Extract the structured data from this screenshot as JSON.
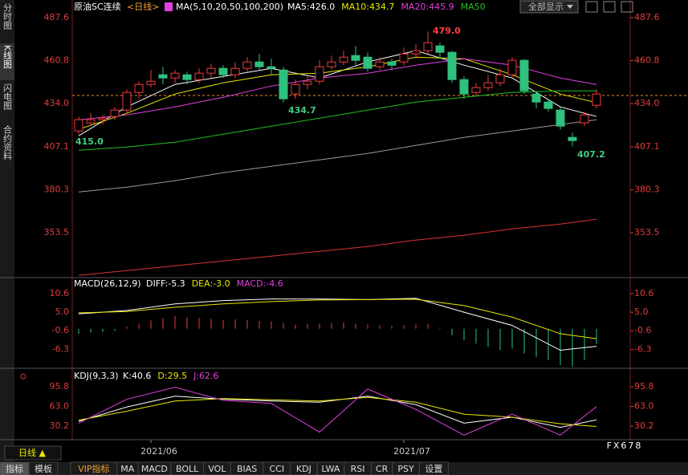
{
  "ui": {
    "sidebar": [
      "分时图",
      "K线图",
      "闪电图",
      "合约资料"
    ],
    "show_all": "全部显示",
    "period_button": "日线 ▲",
    "watermark": "FX678",
    "tabs": [
      "指标",
      "模板",
      "VIP指标",
      "MA",
      "MACD",
      "BOLL",
      "VOL",
      "BIAS",
      "CCI",
      "KDJ",
      "LWA",
      "RSI",
      "CR",
      "PSY",
      "设置"
    ]
  },
  "chart_data": [
    {
      "type": "candlestick",
      "title": "原油SC连续",
      "period": "<日线>",
      "ma_label": "MA(5,10,20,50,100,200)",
      "up_color": "#f03c3c",
      "down_color": "#2fc07e",
      "open": [
        417,
        422,
        424,
        426,
        430,
        441,
        446,
        452,
        450,
        452,
        449,
        453,
        456,
        452,
        456,
        460,
        457,
        455,
        440,
        446,
        448,
        457,
        460,
        464,
        463,
        457,
        460,
        460,
        465,
        467,
        470,
        466,
        449,
        441,
        444,
        447,
        452,
        461,
        440,
        435,
        430,
        413,
        422,
        433
      ],
      "high": [
        426,
        428,
        427,
        432,
        443,
        448,
        455,
        457,
        455,
        454,
        456,
        459,
        458,
        460,
        463,
        465,
        462,
        457,
        449,
        451,
        461,
        464,
        467,
        470,
        466,
        463,
        462,
        469,
        471,
        479.0,
        472,
        467,
        451,
        447,
        452,
        456,
        463,
        462,
        442,
        437,
        432,
        416,
        429,
        443
      ],
      "low": [
        415.0,
        420,
        421,
        424,
        428,
        437,
        444,
        446,
        447,
        446,
        447,
        450,
        450,
        450,
        454,
        455,
        452,
        434.7,
        437,
        443,
        446,
        455,
        458,
        458,
        454,
        455,
        455,
        458,
        462,
        465,
        462,
        447,
        437,
        439,
        442,
        445,
        450,
        440,
        431,
        429,
        418,
        407.2,
        420,
        431
      ],
      "close": [
        424,
        424,
        425,
        430,
        441,
        446,
        448,
        450,
        453,
        449,
        453,
        456,
        452,
        456,
        460,
        457,
        456,
        437,
        446,
        448,
        457,
        460,
        463,
        461,
        456,
        460,
        458,
        465,
        467,
        472,
        466,
        449,
        440,
        444,
        447,
        452,
        461,
        442,
        435,
        431,
        420,
        411,
        427,
        440
      ],
      "xticks": [
        {
          "value": 7,
          "label": "2021/06"
        },
        {
          "value": 28,
          "label": "2021/07"
        }
      ],
      "ylim": [
        326.1,
        498.6
      ],
      "yticks": [
        487.6,
        460.8,
        {
          "value": 434,
          "label": "434.0"
        },
        407.1,
        380.3,
        353.5
      ],
      "last_price": 439.1,
      "annotations": [
        {
          "value": 479,
          "label": "479.0",
          "x": 30
        },
        {
          "value": 434.7,
          "label": "434.7",
          "x": 18
        },
        {
          "value": 415,
          "label": "415.0",
          "x": 1
        },
        {
          "value": 407.2,
          "label": "407.2",
          "x": 42
        }
      ],
      "series": [
        {
          "name": "MA5:426.0",
          "color": "#ffffff",
          "x": [
            1,
            5,
            9,
            13,
            17,
            21,
            25,
            29,
            33,
            37,
            41,
            44
          ],
          "values": [
            414,
            432,
            446,
            451,
            456,
            450,
            460,
            467,
            458,
            450,
            432,
            426.0
          ]
        },
        {
          "name": "MA10:434.7",
          "color": "#e8e800",
          "x": [
            1,
            5,
            9,
            13,
            17,
            21,
            25,
            29,
            33,
            37,
            41,
            44
          ],
          "values": [
            418,
            428,
            440,
            447,
            452,
            453,
            457,
            463,
            462,
            452,
            440,
            434.7
          ]
        },
        {
          "name": "MA20:445.9",
          "color": "#e040e0",
          "x": [
            1,
            5,
            9,
            13,
            17,
            21,
            25,
            29,
            33,
            37,
            41,
            44
          ],
          "values": [
            424,
            427,
            432,
            438,
            445,
            450,
            453,
            458,
            462,
            458,
            450,
            445.9
          ]
        },
        {
          "name": "MA50",
          "color": "#22c022",
          "x": [
            1,
            5,
            9,
            13,
            17,
            21,
            25,
            29,
            33,
            37,
            41,
            44
          ],
          "values": [
            405,
            407,
            410,
            415,
            420,
            425,
            430,
            435,
            438,
            441,
            442,
            442
          ]
        },
        {
          "color": "#9a9a9a",
          "x": [
            1,
            5,
            9,
            13,
            17,
            21,
            25,
            29,
            33,
            37,
            41,
            44
          ],
          "values": [
            379,
            382,
            386,
            391,
            395,
            399,
            403,
            408,
            413,
            417,
            421,
            424
          ]
        },
        {
          "color": "#e03030",
          "x": [
            1,
            5,
            9,
            13,
            17,
            21,
            25,
            29,
            33,
            37,
            41,
            44
          ],
          "values": [
            327,
            330,
            333,
            336,
            339,
            342,
            345,
            349,
            352,
            356,
            359,
            362
          ]
        }
      ]
    },
    {
      "type": "macd",
      "title": "MACD(26,12,9)",
      "up_color": "#f03c3c",
      "down_color": "#2fc07e",
      "ylim": [
        -11.7,
        15.2
      ],
      "yticks": [
        10.6,
        {
          "value": 5,
          "label": "5.0"
        },
        -0.6,
        -6.3
      ],
      "histogram": {
        "name": "MACD:-4.6",
        "color": "#e040e0",
        "values": [
          -1.5,
          -1.2,
          -1.0,
          -0.6,
          0.6,
          1.5,
          2.5,
          3.2,
          3.8,
          3.5,
          3.3,
          3.0,
          2.6,
          2.8,
          2.7,
          2.4,
          2.2,
          1.8,
          1.2,
          1.5,
          1.6,
          1.7,
          1.9,
          1.5,
          1.3,
          1.0,
          0.8,
          1.1,
          1.3,
          1.5,
          0.4,
          -2.0,
          -3.5,
          -4.5,
          -5.5,
          -6.5,
          -6.0,
          -7.5,
          -8.5,
          -9.5,
          -11.0,
          -11.5,
          -9.5,
          -4.6
        ]
      },
      "series": [
        {
          "name": "DIFF:-5.3",
          "color": "#ffffff",
          "x": [
            1,
            5,
            9,
            13,
            17,
            21,
            25,
            29,
            33,
            37,
            41,
            44
          ],
          "values": [
            4.5,
            5.5,
            7.5,
            8.5,
            9.0,
            9.0,
            8.8,
            9.2,
            5.0,
            1.0,
            -6.5,
            -5.3
          ]
        },
        {
          "name": "DEA:-3.0",
          "color": "#e8e800",
          "x": [
            1,
            5,
            9,
            13,
            17,
            21,
            25,
            29,
            33,
            37,
            41,
            44
          ],
          "values": [
            4.8,
            5.2,
            6.5,
            7.5,
            8.2,
            8.7,
            8.8,
            8.9,
            7.0,
            3.5,
            -1.5,
            -3.0
          ]
        }
      ]
    },
    {
      "type": "kdj",
      "title": "KDJ(9,3,3)",
      "ylim": [
        7.4,
        125.3
      ],
      "yticks": [
        95.8,
        {
          "value": 63,
          "label": "63.0"
        },
        30.2
      ],
      "series": [
        {
          "name": "K:40.6",
          "color": "#ffffff",
          "x": [
            1,
            5,
            9,
            13,
            17,
            21,
            25,
            29,
            33,
            37,
            41,
            44
          ],
          "values": [
            38,
            62,
            80,
            75,
            72,
            70,
            80,
            66,
            35,
            45,
            28,
            40.6
          ]
        },
        {
          "name": "D:29.5",
          "color": "#e8e800",
          "x": [
            1,
            5,
            9,
            13,
            17,
            21,
            25,
            29,
            33,
            37,
            41,
            44
          ],
          "values": [
            40,
            55,
            72,
            76,
            74,
            72,
            78,
            70,
            50,
            45,
            34,
            29.5
          ]
        },
        {
          "name": "J:62.6",
          "color": "#e040e0",
          "x": [
            1,
            5,
            9,
            13,
            17,
            21,
            25,
            29,
            33,
            37,
            41,
            44
          ],
          "values": [
            35,
            75,
            95,
            73,
            68,
            20,
            92,
            58,
            15,
            50,
            15,
            62.6
          ]
        }
      ]
    }
  ]
}
